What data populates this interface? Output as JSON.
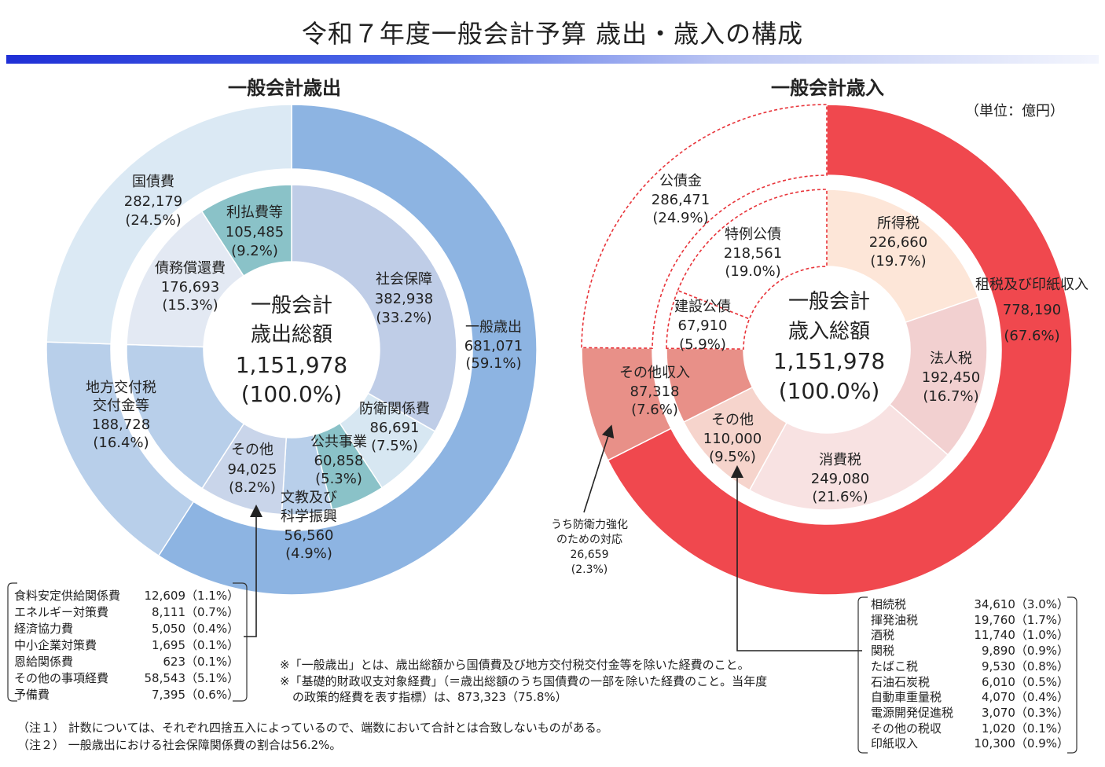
{
  "title": "令和７年度一般会計予算 歳出・歳入の構成",
  "unit": "（単位：億円）",
  "expenditure": {
    "heading": "一般会計歳出",
    "center": {
      "line1": "一般会計",
      "line2": "歳出総額",
      "value": "1,151,978",
      "pct": "(100.0%)"
    },
    "outer": [
      {
        "name": "一般歳出",
        "value": "681,071",
        "pct": "(59.1%)",
        "v": 681071,
        "color": "#8db4e2"
      },
      {
        "name": "地方交付税\n交付金等",
        "value": "188,728",
        "pct": "(16.4%)",
        "v": 188728,
        "color": "#b8cfea"
      },
      {
        "name": "国債費",
        "value": "282,179",
        "pct": "(24.5%)",
        "v": 282179,
        "color": "#dbe9f4"
      }
    ],
    "inner": [
      {
        "name": "社会保障",
        "value": "382,938",
        "pct": "(33.2%)",
        "v": 382938,
        "color": "#bfcde7"
      },
      {
        "name": "防衛関係費",
        "value": "86,691",
        "pct": "(7.5%)",
        "v": 86691,
        "color": "#d7e7f2"
      },
      {
        "name": "公共事業",
        "value": "60,858",
        "pct": "(5.3%)",
        "v": 60858,
        "color": "#8ac2c8"
      },
      {
        "name": "文教及び\n科学振興",
        "value": "56,560",
        "pct": "(4.9%)",
        "v": 56560,
        "color": "#b8cfea"
      },
      {
        "name": "その他",
        "value": "94,025",
        "pct": "(8.2%)",
        "v": 94025,
        "color": "#c9d5ea"
      },
      {
        "name": "地方交付税交付金等",
        "value": "188,728",
        "pct": "(16.4%)",
        "v": 188728,
        "color": "#b8cfea"
      },
      {
        "name": "債務償還費",
        "value": "176,693",
        "pct": "(15.3%)",
        "v": 176693,
        "color": "#e3e9f3"
      },
      {
        "name": "利払費等",
        "value": "105,485",
        "pct": "(9.2%)",
        "v": 105485,
        "color": "#8ac2c8"
      }
    ],
    "breakdown": [
      {
        "name": "食料安定供給関係費",
        "value": "12,609",
        "pct": "（1.1%）"
      },
      {
        "name": "エネルギー対策費",
        "value": "8,111",
        "pct": "（0.7%）"
      },
      {
        "name": "経済協力費",
        "value": "5,050",
        "pct": "（0.4%）"
      },
      {
        "name": "中小企業対策費",
        "value": "1,695",
        "pct": "（0.1%）"
      },
      {
        "name": "恩給関係費",
        "value": "623",
        "pct": "（0.1%）"
      },
      {
        "name": "その他の事項経費",
        "value": "58,543",
        "pct": "（5.1%）"
      },
      {
        "name": "予備費",
        "value": "7,395",
        "pct": "（0.6%）"
      }
    ]
  },
  "revenue": {
    "heading": "一般会計歳入",
    "center": {
      "line1": "一般会計",
      "line2": "歳入総額",
      "value": "1,151,978",
      "pct": "(100.0%)"
    },
    "outer": [
      {
        "name": "租税及び印紙収入",
        "value": "778,190",
        "pct": "(67.6%)",
        "v": 778190,
        "color": "#f0484e"
      },
      {
        "name": "その他収入",
        "value": "87,318",
        "pct": "(7.6%)",
        "v": 87318,
        "color": "#e89088"
      },
      {
        "name": "公債金",
        "value": "286,471",
        "pct": "(24.9%)",
        "v": 286471,
        "color": "#ffffff"
      }
    ],
    "inner": [
      {
        "name": "所得税",
        "value": "226,660",
        "pct": "(19.7%)",
        "v": 226660,
        "color": "#fde6d8"
      },
      {
        "name": "法人税",
        "value": "192,450",
        "pct": "(16.7%)",
        "v": 192450,
        "color": "#f2d0d0"
      },
      {
        "name": "消費税",
        "value": "249,080",
        "pct": "(21.6%)",
        "v": 249080,
        "color": "#f8e2e2"
      },
      {
        "name": "その他",
        "value": "110,000",
        "pct": "(9.5%)",
        "v": 110000,
        "color": "#f6d4cc"
      },
      {
        "name": "その他収入",
        "value": "87,318",
        "pct": "(7.6%)",
        "v": 87318,
        "color": "#e89088"
      },
      {
        "name": "建設公債",
        "value": "67,910",
        "pct": "(5.9%)",
        "v": 67910,
        "color": "#ffffff"
      },
      {
        "name": "特例公債",
        "value": "218,561",
        "pct": "(19.0%)",
        "v": 218561,
        "color": "#ffffff"
      }
    ],
    "defense_note": {
      "line1": "うち防衛力強化",
      "line2": "のための対応",
      "value": "26,659",
      "pct": "(2.3%)"
    },
    "breakdown": [
      {
        "name": "相続税",
        "value": "34,610",
        "pct": "（3.0%）"
      },
      {
        "name": "揮発油税",
        "value": "19,760",
        "pct": "（1.7%）"
      },
      {
        "name": "酒税",
        "value": "11,740",
        "pct": "（1.0%）"
      },
      {
        "name": "関税",
        "value": "9,890",
        "pct": "（0.9%）"
      },
      {
        "name": "たばこ税",
        "value": "9,530",
        "pct": "（0.8%）"
      },
      {
        "name": "石油石炭税",
        "value": "6,010",
        "pct": "（0.5%）"
      },
      {
        "name": "自動車重量税",
        "value": "4,070",
        "pct": "（0.4%）"
      },
      {
        "name": "電源開発促進税",
        "value": "3,070",
        "pct": "（0.3%）"
      },
      {
        "name": "その他の税収",
        "value": "1,020",
        "pct": "（0.1%）"
      },
      {
        "name": "印紙収入",
        "value": "10,300",
        "pct": "（0.9%）"
      }
    ]
  },
  "notes": {
    "star1": "※「一般歳出」とは、歳出総額から国債費及び地方交付税交付金等を除いた経費のこと。",
    "star2a": "※「基礎的財政収支対象経費」（＝歳出総額のうち国債費の一部を除いた経費のこと。当年度",
    "star2b": "の政策的経費を表す指標）は、873,323（75.8%）",
    "n1": "（注１） 計数については、それぞれ四捨五入によっているので、端数において合計とは合致しないものがある。",
    "n2": "（注２） 一般歳出における社会保障関係費の割合は56.2%。"
  },
  "chart_data": [
    {
      "type": "pie",
      "title": "一般会計歳出",
      "unit": "億円",
      "total": 1151978,
      "series": [
        {
          "name": "outer",
          "categories": [
            "一般歳出",
            "地方交付税交付金等",
            "国債費"
          ],
          "values": [
            681071,
            188728,
            282179
          ]
        },
        {
          "name": "inner",
          "categories": [
            "社会保障",
            "防衛関係費",
            "公共事業",
            "文教及び科学振興",
            "その他",
            "地方交付税交付金等",
            "債務償還費",
            "利払費等"
          ],
          "values": [
            382938,
            86691,
            60858,
            56560,
            94025,
            188728,
            176693,
            105485
          ]
        }
      ]
    },
    {
      "type": "pie",
      "title": "一般会計歳入",
      "unit": "億円",
      "total": 1151978,
      "series": [
        {
          "name": "outer",
          "categories": [
            "租税及び印紙収入",
            "その他収入",
            "公債金"
          ],
          "values": [
            778190,
            87318,
            286471
          ]
        },
        {
          "name": "inner",
          "categories": [
            "所得税",
            "法人税",
            "消費税",
            "その他",
            "その他収入",
            "建設公債",
            "特例公債"
          ],
          "values": [
            226660,
            192450,
            249080,
            110000,
            87318,
            67910,
            218561
          ]
        }
      ]
    }
  ]
}
